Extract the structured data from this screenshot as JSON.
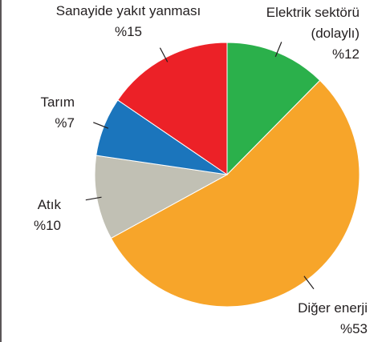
{
  "chart_data": {
    "type": "pie",
    "categories": [
      "Elektrik sektörü (dolaylı)",
      "Diğer enerji",
      "Atık",
      "Tarım",
      "Sanayide yakıt yanması"
    ],
    "values": [
      12,
      53,
      10,
      7,
      15
    ],
    "value_labels": [
      "%12",
      "%53",
      "%10",
      "%7",
      "%15"
    ],
    "colors": [
      "#2bb04b",
      "#f7a52a",
      "#c1c0b4",
      "#1b75bc",
      "#ec2127"
    ]
  }
}
